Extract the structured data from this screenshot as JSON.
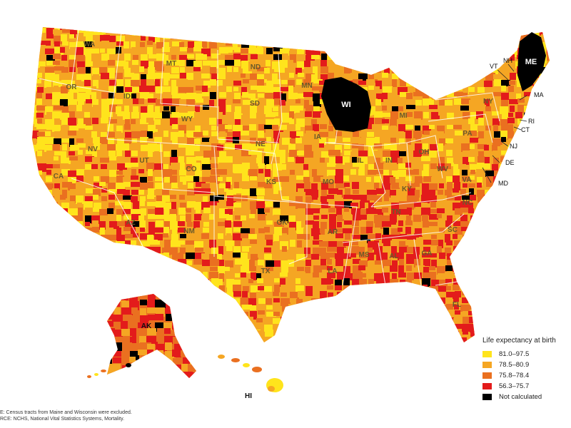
{
  "map": {
    "states": [
      "WA",
      "OR",
      "ID",
      "MT",
      "ND",
      "MN",
      "SD",
      "WY",
      "NV",
      "CA",
      "UT",
      "CO",
      "NE",
      "IA",
      "KS",
      "MO",
      "AZ",
      "NM",
      "OK",
      "TX",
      "AR",
      "LA",
      "MS",
      "AL",
      "TN",
      "KY",
      "GA",
      "SC",
      "NC",
      "VA",
      "WV",
      "OH",
      "IN",
      "IL",
      "MI",
      "WI",
      "PA",
      "NY",
      "FL",
      "AK",
      "HI",
      "ME",
      "VT",
      "NH",
      "MA",
      "RI",
      "CT",
      "NJ",
      "DE",
      "MD"
    ]
  },
  "legend": {
    "title": "Life expectancy at birth",
    "items": [
      {
        "label": "81.0–97.5",
        "color": "#ffe41c"
      },
      {
        "label": "78.5–80.9",
        "color": "#f5a623"
      },
      {
        "label": "75.8–78.4",
        "color": "#ea7020"
      },
      {
        "label": "56.3–75.7",
        "color": "#e31b1b"
      },
      {
        "label": "Not calculated",
        "color": "#000000"
      }
    ]
  },
  "notes": {
    "note": "E: Census tracts from Maine and Wisconsin were excluded.",
    "source": "RCE: NCHS, National Vital Statistics Systems, Mortality."
  }
}
